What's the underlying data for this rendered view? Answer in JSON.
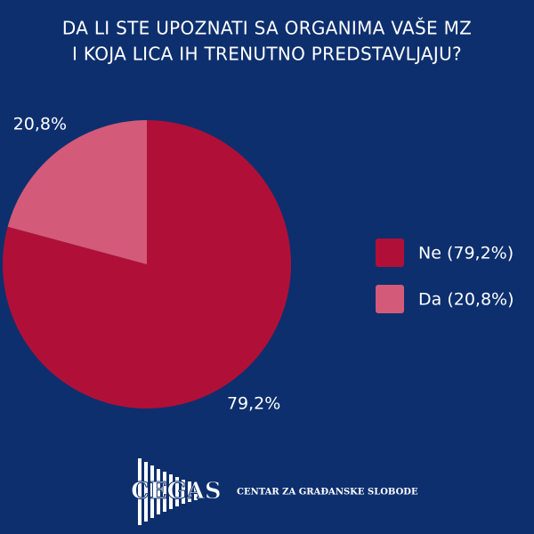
{
  "chart_data": {
    "type": "pie",
    "title": [
      "DA LI STE UPOZNATI SA ORGANIMA VAŠE MZ",
      "I KOJA LICA IH TRENUTNO PREDSTAVLJAJU?"
    ],
    "categories": [
      "Ne (79,2%)",
      "Da (20,8%)"
    ],
    "values": [
      79.2,
      20.8
    ],
    "value_labels": [
      "79,2%",
      "20,8%"
    ],
    "colors": [
      "#b01038",
      "#d45a7a"
    ],
    "legend": "right"
  },
  "footer": {
    "logo": "CEGAS",
    "text": "CENTAR ZA GRAĐANSKE SLOBODE"
  }
}
